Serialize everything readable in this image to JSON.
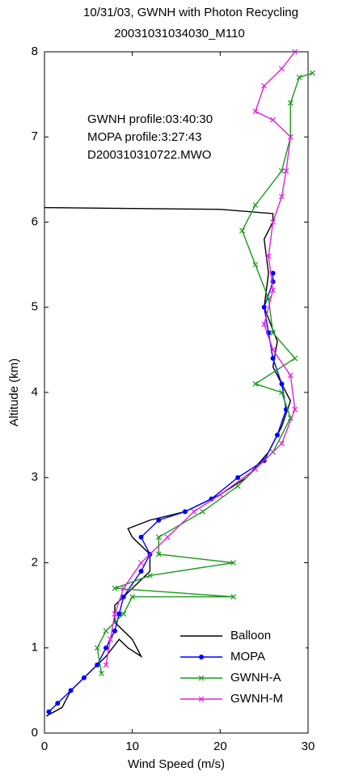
{
  "chart_data": {
    "type": "line",
    "title": "10/31/03,  GWNH with Photon Recycling",
    "subtitle": "20031031034030_M110",
    "annotations": [
      "GWNH profile:03:40:30",
      "MOPA profile:3:27:43",
      "D200310310722.MWO"
    ],
    "x_label": "Wind Speed (m/s)",
    "y_label": "Altitude (km)",
    "xlim": [
      0,
      30
    ],
    "xticks": [
      0,
      10,
      20,
      30
    ],
    "ylim": [
      0,
      8
    ],
    "yticks": [
      0,
      1,
      2,
      3,
      4,
      5,
      6,
      7,
      8
    ],
    "legend": "lower right",
    "series": [
      {
        "name": "Balloon",
        "color": "#000000",
        "marker": "none",
        "x": [
          0.2,
          2,
          3,
          5,
          7,
          8.5,
          9.5,
          11,
          10,
          8,
          8,
          10,
          12,
          12,
          10,
          9.5,
          12,
          16,
          20,
          23,
          25.5,
          27,
          28,
          27,
          26,
          26.5,
          25,
          25.5,
          25,
          26,
          26,
          20,
          0
        ],
        "values": [
          0.2,
          0.3,
          0.5,
          0.7,
          0.9,
          1.1,
          1.0,
          0.9,
          1.1,
          1.3,
          1.5,
          1.7,
          1.9,
          2.1,
          2.3,
          2.4,
          2.5,
          2.6,
          2.8,
          3.0,
          3.3,
          3.6,
          3.9,
          4.1,
          4.3,
          4.6,
          5.0,
          5.4,
          5.8,
          6.0,
          6.1,
          6.15,
          6.17
        ]
      },
      {
        "name": "MOPA",
        "color": "#0000ff",
        "marker": "dot",
        "x": [
          0.5,
          1.5,
          3,
          4.5,
          6,
          7,
          8,
          8.5,
          9,
          11,
          12,
          11,
          13,
          16,
          19,
          22,
          25,
          26.5,
          27.5,
          27,
          26,
          25.5,
          25,
          26,
          26
        ],
        "values": [
          0.25,
          0.35,
          0.5,
          0.65,
          0.8,
          1.0,
          1.2,
          1.4,
          1.6,
          1.9,
          2.1,
          2.3,
          2.5,
          2.6,
          2.75,
          3.0,
          3.2,
          3.5,
          3.8,
          4.1,
          4.4,
          4.7,
          5.0,
          5.3,
          5.4
        ]
      },
      {
        "name": "GWNH-A",
        "color": "#1a9a1a",
        "marker": "x",
        "x": [
          6.5,
          6,
          7,
          9,
          10,
          21.5,
          8,
          12,
          21.5,
          13,
          13,
          18,
          22,
          26,
          28,
          27,
          24,
          28.5,
          26,
          25.5,
          24,
          22.5,
          24,
          27,
          28,
          28,
          29,
          30.5
        ],
        "values": [
          0.7,
          1.0,
          1.2,
          1.4,
          1.6,
          1.6,
          1.7,
          1.85,
          2.0,
          2.1,
          2.3,
          2.6,
          2.9,
          3.3,
          3.7,
          4.0,
          4.1,
          4.4,
          4.7,
          5.1,
          5.5,
          5.9,
          6.2,
          6.6,
          7.0,
          7.4,
          7.7,
          7.75
        ]
      },
      {
        "name": "GWNH-M",
        "color": "#e020e0",
        "marker": "x",
        "x": [
          7,
          7.5,
          8,
          9,
          11,
          14,
          17,
          20,
          24,
          27,
          28.5,
          28,
          26,
          25,
          26,
          25.5,
          26,
          27,
          27.5,
          28,
          26,
          24,
          25,
          27,
          28.5
        ],
        "values": [
          0.8,
          1.1,
          1.4,
          1.7,
          2.0,
          2.3,
          2.6,
          2.8,
          3.1,
          3.4,
          3.8,
          4.2,
          4.5,
          4.8,
          5.2,
          5.6,
          6.0,
          6.3,
          6.6,
          7.0,
          7.2,
          7.3,
          7.6,
          7.8,
          8.0
        ]
      }
    ]
  }
}
